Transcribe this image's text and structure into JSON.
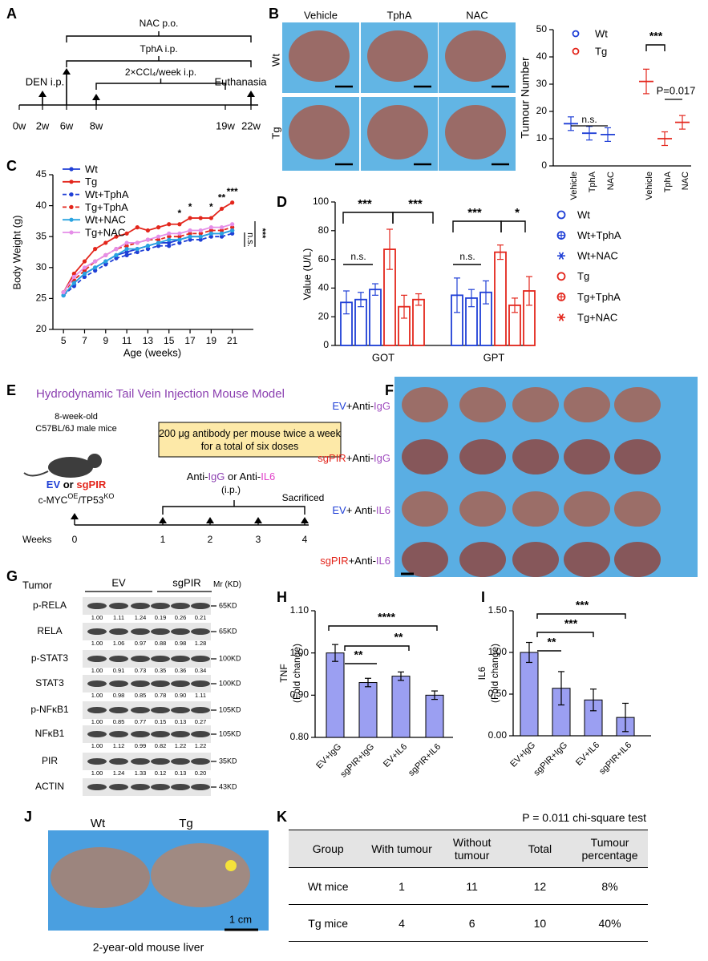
{
  "panel_labels": [
    "A",
    "B",
    "C",
    "D",
    "E",
    "F",
    "G",
    "H",
    "I",
    "J",
    "K"
  ],
  "panel_a": {
    "brackets": [
      "NAC p.o.",
      "TphA i.p.",
      "2×CCl₄/week i.p."
    ],
    "events": [
      "DEN i.p.",
      "Euthanasia"
    ],
    "timepoints": [
      "0w",
      "2w",
      "6w",
      "8w",
      "19w",
      "22w"
    ]
  },
  "panel_b_photos": {
    "columns": [
      "Vehicle",
      "TphA",
      "NAC"
    ],
    "rows": [
      "Wt",
      "Tg"
    ]
  },
  "chart_data": [
    {
      "type": "dotplot",
      "ylabel": "Tumour Number",
      "categories": [
        "Vehicle",
        "TphA",
        "NAC",
        "Vehicle",
        "TphA",
        "NAC"
      ],
      "series": [
        {
          "name": "Wt",
          "color": "#1f3fd6",
          "values": [
            15.5,
            12,
            11.5,
            null,
            null,
            null
          ],
          "errors": [
            2.5,
            2.5,
            2.5,
            null,
            null,
            null
          ]
        },
        {
          "name": "Tg",
          "color": "#e3261c",
          "values": [
            null,
            null,
            null,
            31,
            10,
            16
          ],
          "errors": [
            null,
            null,
            null,
            4.5,
            2.5,
            2.5
          ]
        }
      ],
      "ylim": [
        0,
        50
      ],
      "yticks": [
        0,
        10,
        20,
        30,
        40,
        50
      ],
      "legend": "upper left",
      "annotations": [
        "n.s.",
        "***",
        "P=0.017"
      ]
    },
    {
      "type": "line",
      "xlabel": "Age (weeks)",
      "ylabel": "Body Weight (g)",
      "x": [
        5,
        6,
        7,
        8,
        9,
        10,
        11,
        12,
        13,
        14,
        15,
        16,
        17,
        18,
        19,
        20,
        21
      ],
      "xlim": [
        4,
        23
      ],
      "xticks": [
        5,
        7,
        9,
        11,
        13,
        15,
        17,
        19,
        21
      ],
      "ylim": [
        20,
        45
      ],
      "yticks": [
        20,
        25,
        30,
        35,
        40,
        45
      ],
      "legend": "upper left",
      "series": [
        {
          "name": "Wt",
          "color": "#1f3fd6",
          "line_style": "solid",
          "values": [
            25.5,
            27.5,
            29,
            30,
            31,
            32,
            32.5,
            33,
            33.5,
            34,
            34,
            34.5,
            35,
            35,
            35.5,
            35.5,
            36
          ]
        },
        {
          "name": "Tg",
          "color": "#e3261c",
          "line_style": "solid",
          "values": [
            26,
            29,
            31,
            33,
            34,
            35,
            35.5,
            36.5,
            36,
            36.5,
            37,
            37,
            38,
            38,
            38,
            39.5,
            40.5
          ]
        },
        {
          "name": "Wt+TphA",
          "color": "#1f3fd6",
          "line_style": "dashed",
          "values": [
            25.5,
            27,
            28.5,
            29.5,
            30.5,
            31.5,
            32,
            32.5,
            33,
            33.5,
            33.5,
            34,
            34.5,
            34.5,
            35,
            35,
            35.5
          ]
        },
        {
          "name": "Tg+TphA",
          "color": "#e3261c",
          "line_style": "dashed",
          "values": [
            26,
            28,
            29.5,
            31,
            32,
            33,
            33.5,
            34,
            34.5,
            34.5,
            35,
            35,
            35.5,
            35.5,
            36,
            36,
            36.5
          ]
        },
        {
          "name": "Wt+NAC",
          "color": "#29a3e0",
          "line_style": "solid",
          "values": [
            25.5,
            27.5,
            29,
            30,
            31,
            32,
            33,
            33,
            33.5,
            34,
            34.5,
            34.5,
            35,
            35,
            35.5,
            35.5,
            36
          ]
        },
        {
          "name": "Tg+NAC",
          "color": "#e58ee8",
          "line_style": "solid",
          "values": [
            26,
            28.5,
            30,
            31,
            32,
            33,
            34,
            34,
            34.5,
            35,
            35.5,
            35.5,
            36,
            36,
            36.5,
            36.5,
            37
          ]
        }
      ],
      "annotations": [
        "*",
        "*",
        "*",
        "**",
        "***",
        "n.s.",
        "***"
      ]
    },
    {
      "type": "bar",
      "ylabel": "Value (U/L)",
      "categories": [
        "GOT",
        "GPT"
      ],
      "ylim": [
        0,
        100
      ],
      "yticks": [
        0,
        20,
        40,
        60,
        80,
        100
      ],
      "legend": "right",
      "series": [
        {
          "name": "Wt",
          "color": "#1f3fd6",
          "marker": "circle",
          "values": [
            30,
            35
          ],
          "errors": [
            8,
            12
          ]
        },
        {
          "name": "Wt+TphA",
          "color": "#1f3fd6",
          "marker": "circle-plus",
          "values": [
            32,
            33
          ],
          "errors": [
            5,
            6
          ]
        },
        {
          "name": "Wt+NAC",
          "color": "#1f3fd6",
          "marker": "asterisk",
          "values": [
            39,
            37
          ],
          "errors": [
            4,
            8
          ]
        },
        {
          "name": "Tg",
          "color": "#e3261c",
          "marker": "circle",
          "values": [
            67,
            65
          ],
          "errors": [
            14,
            5
          ]
        },
        {
          "name": "Tg+TphA",
          "color": "#e3261c",
          "marker": "circle-plus",
          "values": [
            27,
            28
          ],
          "errors": [
            8,
            5
          ]
        },
        {
          "name": "Tg+NAC",
          "color": "#e3261c",
          "marker": "asterisk",
          "values": [
            32,
            38
          ],
          "errors": [
            4,
            10
          ]
        }
      ],
      "annotations": [
        "***",
        "***",
        "n.s.",
        "***",
        "*",
        "n.s."
      ]
    },
    {
      "type": "bar",
      "ylabel": "TNF",
      "ylabel2": "(Fold change)",
      "color": "#9b9ff2",
      "categories": [
        "EV+IgG",
        "sgPIR+IgG",
        "EV+IL6",
        "sgPIR+IL6"
      ],
      "values": [
        1.0,
        0.93,
        0.945,
        0.9
      ],
      "errors": [
        0.02,
        0.01,
        0.01,
        0.01
      ],
      "ylim": [
        0.8,
        1.1
      ],
      "yticks": [
        {
          "value": 0.8,
          "label": "0.80"
        },
        {
          "value": 0.9,
          "label": "0.90"
        },
        {
          "value": 1,
          "label": "1.00"
        },
        {
          "value": 1.1,
          "label": "1.10"
        }
      ],
      "annotations": [
        "**",
        "**",
        "****"
      ]
    },
    {
      "type": "bar",
      "ylabel": "IL6",
      "ylabel2": "(Fold change)",
      "color": "#9b9ff2",
      "categories": [
        "EV+IgG",
        "sgPIR+IgG",
        "EV+IL6",
        "sgPIR+IL6"
      ],
      "values": [
        1.0,
        0.57,
        0.43,
        0.22
      ],
      "errors": [
        0.12,
        0.2,
        0.13,
        0.17
      ],
      "ylim": [
        0,
        1.5
      ],
      "yticks": [
        {
          "value": 0,
          "label": "0.00"
        },
        {
          "value": 0.5,
          "label": "0.50"
        },
        {
          "value": 1,
          "label": "1.00"
        },
        {
          "value": 1.5,
          "label": "1.50"
        }
      ],
      "annotations": [
        "**",
        "***",
        "***"
      ]
    }
  ],
  "panel_e": {
    "title": "Hydrodynamic Tail Vein Injection Mouse Model",
    "mice": [
      "8-week-old",
      "C57BL/6J male mice"
    ],
    "dosing": "200 μg antibody per mouse twice a week for a total of six doses",
    "group": [
      "EV",
      " or ",
      "sgPIR"
    ],
    "model": [
      "c-MYC",
      "OE",
      "/TP53",
      "KO"
    ],
    "treatment": [
      "Anti-",
      "IgG",
      " or Anti-",
      "IL6"
    ],
    "route": "(i.p.)",
    "endpoint": "Sacrificed",
    "axis_label": "Weeks",
    "weeks": [
      "0",
      "1",
      "2",
      "3",
      "4"
    ]
  },
  "panel_f": {
    "rows": [
      [
        "EV",
        "+Anti-",
        "IgG"
      ],
      [
        "sgPIR",
        "+Anti-",
        "IgG"
      ],
      [
        "EV",
        "+ Anti-",
        "IL6"
      ],
      [
        "sgPIR",
        "+Anti-",
        "IL6"
      ]
    ]
  },
  "panel_g": {
    "header": {
      "title": "Tumor",
      "groups": [
        "EV",
        "sgPIR"
      ],
      "mw": [
        "Mr",
        " (KD)"
      ]
    },
    "rows": [
      {
        "name": "p-RELA",
        "mw": "65KD",
        "quant": [
          "1.00",
          "1.11",
          "1.24",
          "0.19",
          "0.26",
          "0.21"
        ]
      },
      {
        "name": "RELA",
        "mw": "65KD",
        "quant": [
          "1.00",
          "1.06",
          "0.97",
          "0.88",
          "0.98",
          "1.28"
        ]
      },
      {
        "name": "p-STAT3",
        "mw": "100KD",
        "quant": [
          "1.00",
          "0.91",
          "0.73",
          "0.35",
          "0.36",
          "0.34"
        ]
      },
      {
        "name": "STAT3",
        "mw": "100KD",
        "quant": [
          "1.00",
          "0.98",
          "0.85",
          "0.78",
          "0.90",
          "1.11"
        ]
      },
      {
        "name": "p-NFκB1",
        "mw": "105KD",
        "quant": [
          "1.00",
          "0.85",
          "0.77",
          "0.15",
          "0.13",
          "0.27"
        ]
      },
      {
        "name": "NFκB1",
        "mw": "105KD",
        "quant": [
          "1.00",
          "1.12",
          "0.99",
          "0.82",
          "1.22",
          "1.22"
        ]
      },
      {
        "name": "PIR",
        "mw": "35KD",
        "quant": [
          "1.00",
          "1.24",
          "1.33",
          "0.12",
          "0.13",
          "0.20"
        ]
      },
      {
        "name": "ACTIN",
        "mw": "43KD",
        "quant": []
      }
    ]
  },
  "panel_j": {
    "labels": [
      "Wt",
      "Tg"
    ],
    "scale": "1 cm",
    "caption": "2-year-old mouse liver"
  },
  "panel_k": {
    "note": "P = 0.011 chi-square test",
    "header": [
      "Group",
      "With tumour",
      "Without tumour",
      "Total",
      "Tumour percentage"
    ],
    "rows": [
      [
        "Wt mice",
        "1",
        "11",
        "12",
        "8%"
      ],
      [
        "Tg  mice",
        "4",
        "6",
        "10",
        "40%"
      ]
    ]
  }
}
